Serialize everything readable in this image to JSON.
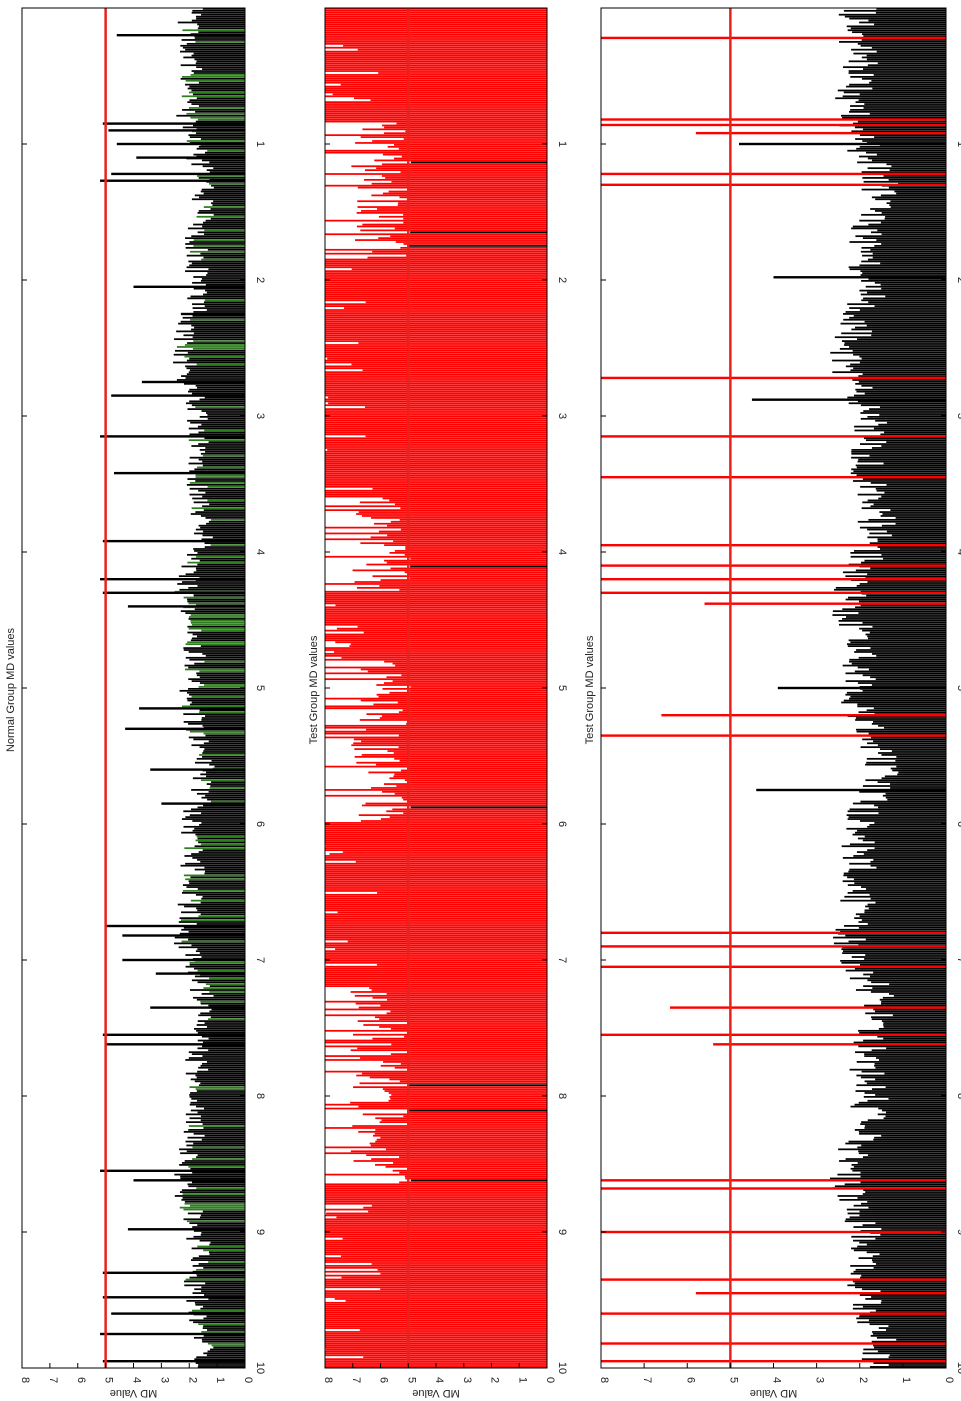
{
  "figure": {
    "orientation": "rotated-90-clockwise",
    "background": "#ffffff"
  },
  "chart_data": [
    {
      "type": "bar",
      "title": "Normal Group MD values",
      "ylabel": "MD Value",
      "xlim": [
        0,
        10
      ],
      "ylim": [
        0,
        8
      ],
      "xticks": [
        "1",
        "2",
        "3",
        "4",
        "5",
        "6",
        "7",
        "8",
        "9",
        "10"
      ],
      "yticks": [
        "0",
        "1",
        "2",
        "3",
        "4",
        "5",
        "6",
        "7",
        "8"
      ],
      "threshold": 5,
      "threshold_color": "#e8221b",
      "bar_colors": [
        "#000000",
        "#2e7d1f"
      ],
      "grid": false,
      "bar_count": 700,
      "baseline_level": 1.8,
      "spikes": [
        {
          "x": 0.2,
          "y": 4.6
        },
        {
          "x": 0.85,
          "y": 5.1
        },
        {
          "x": 0.9,
          "y": 4.9
        },
        {
          "x": 1.0,
          "y": 4.6
        },
        {
          "x": 1.1,
          "y": 3.9
        },
        {
          "x": 1.22,
          "y": 4.8
        },
        {
          "x": 1.27,
          "y": 5.2
        },
        {
          "x": 2.05,
          "y": 4.0
        },
        {
          "x": 2.25,
          "y": 2.3
        },
        {
          "x": 2.75,
          "y": 3.7
        },
        {
          "x": 2.85,
          "y": 4.8
        },
        {
          "x": 3.15,
          "y": 5.2
        },
        {
          "x": 3.42,
          "y": 4.7
        },
        {
          "x": 3.92,
          "y": 5.1
        },
        {
          "x": 4.2,
          "y": 5.2
        },
        {
          "x": 4.3,
          "y": 5.1
        },
        {
          "x": 4.4,
          "y": 4.2
        },
        {
          "x": 5.15,
          "y": 3.8
        },
        {
          "x": 5.3,
          "y": 4.3
        },
        {
          "x": 5.6,
          "y": 3.4
        },
        {
          "x": 5.85,
          "y": 3.0
        },
        {
          "x": 6.75,
          "y": 5.0
        },
        {
          "x": 6.82,
          "y": 4.4
        },
        {
          "x": 7.0,
          "y": 4.4
        },
        {
          "x": 7.1,
          "y": 3.2
        },
        {
          "x": 7.35,
          "y": 3.4
        },
        {
          "x": 7.55,
          "y": 5.1
        },
        {
          "x": 7.62,
          "y": 5.0
        },
        {
          "x": 8.55,
          "y": 5.2
        },
        {
          "x": 8.62,
          "y": 4.0
        },
        {
          "x": 8.98,
          "y": 4.2
        },
        {
          "x": 9.3,
          "y": 5.1
        },
        {
          "x": 9.48,
          "y": 5.1
        },
        {
          "x": 9.6,
          "y": 4.8
        },
        {
          "x": 9.75,
          "y": 5.2
        },
        {
          "x": 9.95,
          "y": 5.1
        }
      ]
    },
    {
      "type": "bar",
      "title": "Test Group MD values",
      "ylabel": "MD Value",
      "xlim": [
        0,
        10
      ],
      "ylim": [
        0,
        8
      ],
      "xticks": [
        "1",
        "2",
        "3",
        "4",
        "5",
        "6",
        "7",
        "8",
        "9",
        "10"
      ],
      "yticks": [
        "0",
        "1",
        "2",
        "3",
        "4",
        "5",
        "6",
        "7",
        "8"
      ],
      "threshold": 5,
      "threshold_color": "#e8221b",
      "bar_colors": [
        "#ff0000",
        "#000000"
      ],
      "grid": false,
      "bar_count": 700,
      "saturated_ranges": [
        [
          0,
          0.85
        ],
        [
          1.85,
          2.8
        ],
        [
          2.8,
          3.6
        ],
        [
          4.3,
          4.8
        ],
        [
          6.0,
          7.2
        ],
        [
          8.65,
          10
        ]
      ],
      "moderate_level": 6.0
    },
    {
      "type": "bar",
      "title": "Test Group MD values",
      "ylabel": "MD Value",
      "xlim": [
        0,
        10
      ],
      "ylim": [
        0,
        8
      ],
      "xticks": [
        "1",
        "2",
        "3",
        "4",
        "5",
        "6",
        "7",
        "8",
        "9",
        "10"
      ],
      "yticks": [
        "0",
        "1",
        "2",
        "3",
        "4",
        "5",
        "6",
        "7",
        "8"
      ],
      "threshold": 5,
      "threshold_color": "#e8221b",
      "bar_colors": [
        "#000000",
        "#ff0000"
      ],
      "grid": false,
      "bar_count": 700,
      "baseline_level": 1.9,
      "spikes": [
        {
          "x": 0.22,
          "y": 8.0
        },
        {
          "x": 0.82,
          "y": 8.0
        },
        {
          "x": 0.86,
          "y": 8.0
        },
        {
          "x": 0.92,
          "y": 5.8
        },
        {
          "x": 1.0,
          "y": 4.8
        },
        {
          "x": 1.22,
          "y": 8.0
        },
        {
          "x": 1.3,
          "y": 8.0
        },
        {
          "x": 1.98,
          "y": 4.0
        },
        {
          "x": 2.72,
          "y": 8.0
        },
        {
          "x": 2.88,
          "y": 4.5
        },
        {
          "x": 3.15,
          "y": 8.0
        },
        {
          "x": 3.45,
          "y": 8.0
        },
        {
          "x": 3.95,
          "y": 8.0
        },
        {
          "x": 4.1,
          "y": 8.0
        },
        {
          "x": 4.2,
          "y": 8.0
        },
        {
          "x": 4.3,
          "y": 8.0
        },
        {
          "x": 4.38,
          "y": 5.6
        },
        {
          "x": 5.2,
          "y": 6.6
        },
        {
          "x": 5.35,
          "y": 8.0
        },
        {
          "x": 5.0,
          "y": 3.9
        },
        {
          "x": 5.75,
          "y": 4.4
        },
        {
          "x": 6.8,
          "y": 8.0
        },
        {
          "x": 6.9,
          "y": 8.0
        },
        {
          "x": 7.05,
          "y": 8.0
        },
        {
          "x": 7.35,
          "y": 6.4
        },
        {
          "x": 7.55,
          "y": 8.0
        },
        {
          "x": 7.62,
          "y": 5.4
        },
        {
          "x": 8.62,
          "y": 8.0
        },
        {
          "x": 8.68,
          "y": 8.0
        },
        {
          "x": 9.0,
          "y": 8.0
        },
        {
          "x": 9.35,
          "y": 8.0
        },
        {
          "x": 9.45,
          "y": 5.8
        },
        {
          "x": 9.6,
          "y": 8.0
        },
        {
          "x": 9.82,
          "y": 8.0
        },
        {
          "x": 9.95,
          "y": 8.0
        }
      ]
    }
  ]
}
